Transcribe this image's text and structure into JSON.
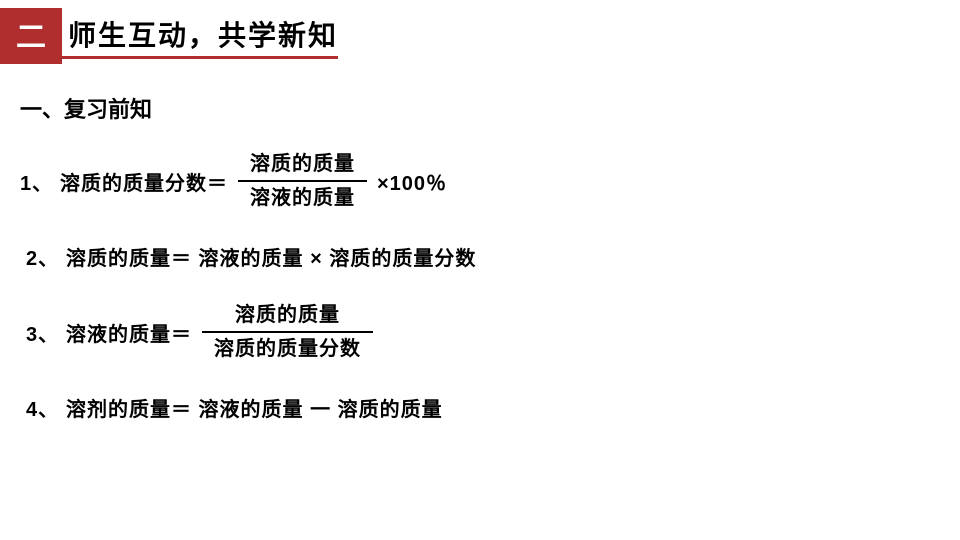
{
  "header": {
    "badge": "二",
    "title": "师生互动，共学新知"
  },
  "section": {
    "heading": "一、复习前知"
  },
  "formulas": {
    "f1": {
      "num": "1、",
      "label": "溶质的质量分数＝",
      "frac_top": "溶质的质量",
      "frac_bottom": "溶液的质量",
      "rest": "×100％"
    },
    "f2": {
      "num": "2、",
      "label": "溶质的质量＝ 溶液的质量 ×  溶质的质量分数"
    },
    "f3": {
      "num": "3、",
      "label": "溶液的质量＝",
      "frac_top": "溶质的质量",
      "frac_bottom": "溶质的质量分数"
    },
    "f4": {
      "num": "4、",
      "label": "溶剂的质量＝   溶液的质量  一   溶质的质量"
    }
  }
}
